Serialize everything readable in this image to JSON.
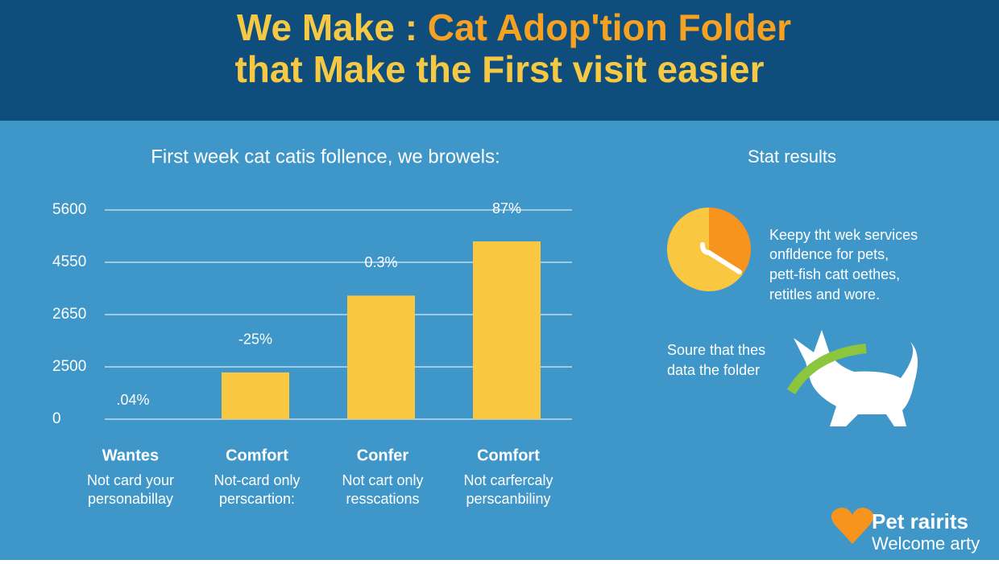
{
  "header": {
    "title_parts": [
      "We Make : ",
      "Cat Adop'tion Folder"
    ],
    "title_line2": "that Make the First visit easier"
  },
  "chart_data": [
    {
      "type": "bar",
      "title": "First week cat catis follence, we browels:",
      "categories": [
        "Wantes",
        "Comfort",
        "Confer",
        "Comfort"
      ],
      "category_notes": [
        [
          "Not card your",
          "personabillay"
        ],
        [
          "Not-card only",
          "perscartion:"
        ],
        [
          "Not cart only",
          "resscations"
        ],
        [
          "Not carfercaly",
          "perscanbiliny"
        ]
      ],
      "values": [
        0,
        2235,
        3340,
        4970
      ],
      "color": "#f9c740",
      "bar_annotations": [
        ".04%",
        "-25%",
        "0.3%",
        "87%"
      ],
      "ylim": [
        0,
        5600
      ],
      "yticks": [
        0,
        2500,
        2650,
        4550,
        5600
      ],
      "grid": true
    },
    {
      "type": "pie",
      "title": "Stat results",
      "values": [
        35,
        65
      ],
      "colors": [
        "#f7941d",
        "#f9c740"
      ]
    }
  ],
  "side": {
    "lines": [
      "Keepy tht wek services",
      "onfldence for pets,",
      "pett-fish catt oethes,",
      "retitles and wore."
    ],
    "source": [
      "Soure that thes",
      "data the folder"
    ]
  },
  "logo": {
    "name": "Pet rairits",
    "tagline": "Welcome arty"
  }
}
